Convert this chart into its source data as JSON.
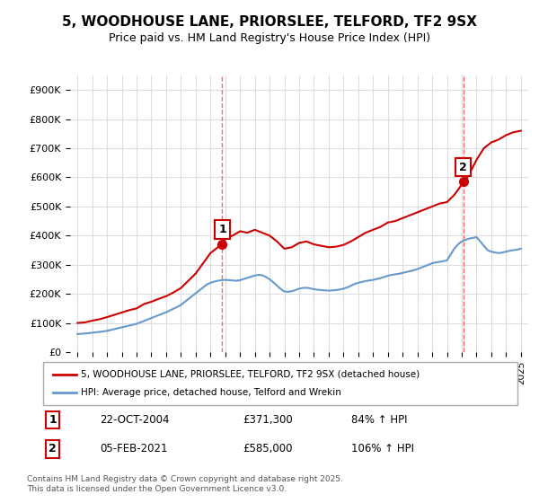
{
  "title": "5, WOODHOUSE LANE, PRIORSLEE, TELFORD, TF2 9SX",
  "subtitle": "Price paid vs. HM Land Registry's House Price Index (HPI)",
  "ylabel": "",
  "ylim": [
    0,
    950000
  ],
  "yticks": [
    0,
    100000,
    200000,
    300000,
    400000,
    500000,
    600000,
    700000,
    800000,
    900000
  ],
  "ytick_labels": [
    "£0",
    "£100K",
    "£200K",
    "£300K",
    "£400K",
    "£500K",
    "£600K",
    "£700K",
    "£800K",
    "£900K"
  ],
  "line1_color": "#cc0000",
  "line2_color": "#6699cc",
  "marker1_color": "#cc0000",
  "sale1_year": 2004.8,
  "sale1_price": 371300,
  "sale1_label": "1",
  "sale1_date": "22-OCT-2004",
  "sale1_pct": "84% ↑ HPI",
  "sale2_year": 2021.1,
  "sale2_price": 585000,
  "sale2_label": "2",
  "sale2_date": "05-FEB-2021",
  "sale2_pct": "106% ↑ HPI",
  "vline1_color": "#ff6666",
  "vline2_color": "#ff6666",
  "legend1_label": "5, WOODHOUSE LANE, PRIORSLEE, TELFORD, TF2 9SX (detached house)",
  "legend2_label": "HPI: Average price, detached house, Telford and Wrekin",
  "footnote": "Contains HM Land Registry data © Crown copyright and database right 2025.\nThis data is licensed under the Open Government Licence v3.0.",
  "background_color": "#ffffff",
  "grid_color": "#dddddd",
  "hpi_line": {
    "years": [
      1995,
      1995.25,
      1995.5,
      1995.75,
      1996,
      1996.25,
      1996.5,
      1996.75,
      1997,
      1997.25,
      1997.5,
      1997.75,
      1998,
      1998.25,
      1998.5,
      1998.75,
      1999,
      1999.25,
      1999.5,
      1999.75,
      2000,
      2000.25,
      2000.5,
      2000.75,
      2001,
      2001.25,
      2001.5,
      2001.75,
      2002,
      2002.25,
      2002.5,
      2002.75,
      2003,
      2003.25,
      2003.5,
      2003.75,
      2004,
      2004.25,
      2004.5,
      2004.75,
      2005,
      2005.25,
      2005.5,
      2005.75,
      2006,
      2006.25,
      2006.5,
      2006.75,
      2007,
      2007.25,
      2007.5,
      2007.75,
      2008,
      2008.25,
      2008.5,
      2008.75,
      2009,
      2009.25,
      2009.5,
      2009.75,
      2010,
      2010.25,
      2010.5,
      2010.75,
      2011,
      2011.25,
      2011.5,
      2011.75,
      2012,
      2012.25,
      2012.5,
      2012.75,
      2013,
      2013.25,
      2013.5,
      2013.75,
      2014,
      2014.25,
      2014.5,
      2014.75,
      2015,
      2015.25,
      2015.5,
      2015.75,
      2016,
      2016.25,
      2016.5,
      2016.75,
      2017,
      2017.25,
      2017.5,
      2017.75,
      2018,
      2018.25,
      2018.5,
      2018.75,
      2019,
      2019.25,
      2019.5,
      2019.75,
      2020,
      2020.25,
      2020.5,
      2020.75,
      2021,
      2021.25,
      2021.5,
      2021.75,
      2022,
      2022.25,
      2022.5,
      2022.75,
      2023,
      2023.25,
      2023.5,
      2023.75,
      2024,
      2024.25,
      2024.5,
      2024.75,
      2025
    ],
    "values": [
      62000,
      63000,
      64000,
      65000,
      66500,
      68000,
      69500,
      71000,
      73000,
      76000,
      79000,
      82000,
      85000,
      88000,
      91000,
      94000,
      97000,
      102000,
      107000,
      112000,
      117000,
      122000,
      127000,
      132000,
      137000,
      143000,
      149000,
      155000,
      162000,
      172000,
      182000,
      192000,
      202000,
      212000,
      222000,
      232000,
      238000,
      242000,
      245000,
      247000,
      248000,
      247000,
      246000,
      245000,
      247000,
      251000,
      255000,
      259000,
      263000,
      265000,
      264000,
      258000,
      250000,
      240000,
      228000,
      217000,
      208000,
      207000,
      209000,
      213000,
      218000,
      220000,
      221000,
      219000,
      216000,
      214000,
      213000,
      212000,
      211000,
      212000,
      213000,
      215000,
      218000,
      222000,
      228000,
      234000,
      238000,
      241000,
      244000,
      246000,
      248000,
      251000,
      254000,
      258000,
      262000,
      265000,
      267000,
      269000,
      272000,
      275000,
      278000,
      281000,
      285000,
      290000,
      295000,
      300000,
      305000,
      308000,
      310000,
      312000,
      315000,
      335000,
      355000,
      370000,
      380000,
      385000,
      390000,
      392000,
      395000,
      380000,
      365000,
      350000,
      345000,
      342000,
      340000,
      342000,
      345000,
      348000,
      350000,
      352000,
      355000
    ]
  },
  "property_line": {
    "years": [
      1995,
      1995.5,
      1996,
      1996.5,
      1997,
      1997.5,
      1998,
      1998.5,
      1999,
      1999.5,
      2000,
      2000.5,
      2001,
      2001.5,
      2002,
      2002.5,
      2003,
      2003.5,
      2004,
      2004.75,
      2004.85,
      2005,
      2005.5,
      2006,
      2006.5,
      2007,
      2007.5,
      2008,
      2008.5,
      2009,
      2009.5,
      2010,
      2010.5,
      2011,
      2011.5,
      2012,
      2012.5,
      2013,
      2013.5,
      2014,
      2014.5,
      2015,
      2015.5,
      2016,
      2016.5,
      2017,
      2017.5,
      2018,
      2018.5,
      2019,
      2019.5,
      2020,
      2020.5,
      2021,
      2021.1,
      2021.25,
      2021.5,
      2022,
      2022.5,
      2023,
      2023.5,
      2024,
      2024.5,
      2025
    ],
    "values": [
      100000,
      102000,
      108000,
      113000,
      120000,
      128000,
      136000,
      144000,
      150000,
      165000,
      173000,
      183000,
      192000,
      205000,
      220000,
      245000,
      270000,
      305000,
      340000,
      370000,
      371300,
      390000,
      400000,
      415000,
      410000,
      420000,
      410000,
      400000,
      380000,
      355000,
      360000,
      375000,
      380000,
      370000,
      365000,
      360000,
      362000,
      368000,
      380000,
      395000,
      410000,
      420000,
      430000,
      445000,
      450000,
      460000,
      470000,
      480000,
      490000,
      500000,
      510000,
      515000,
      540000,
      575000,
      585000,
      590000,
      610000,
      660000,
      700000,
      720000,
      730000,
      745000,
      755000,
      760000
    ]
  }
}
